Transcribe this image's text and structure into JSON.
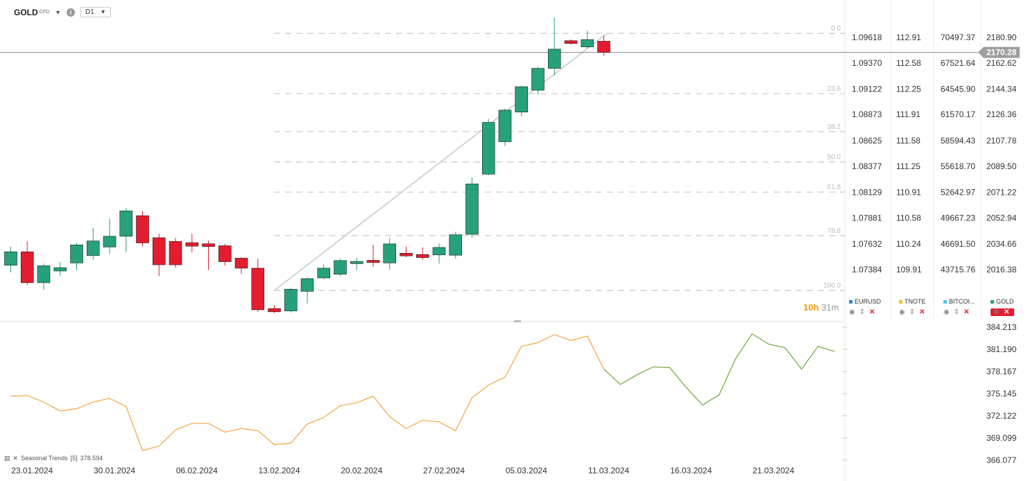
{
  "header": {
    "symbol": "GOLD",
    "badge": "CFD",
    "timeframe": "D1"
  },
  "countdown": {
    "hours": "10h",
    "minutes": "31m"
  },
  "colors": {
    "up": "#26a17b",
    "down": "#e31d2f",
    "grid": "#c8c8c8",
    "fib": "#c8c8c8",
    "trend": "#cfd4d8",
    "ind_orange": "#f4a340",
    "ind_green": "#6aa834",
    "price_tag": "#9e9e9e"
  },
  "legend": [
    {
      "name": "EURUSD",
      "color": "#1e88e5"
    },
    {
      "name": "TNOTE",
      "color": "#f0c419"
    },
    {
      "name": "BITCOI...",
      "color": "#4fc3f7"
    },
    {
      "name": "GOLD",
      "color": "#26a17b"
    }
  ],
  "chart_data": {
    "type": "candlestick",
    "symbol": "GOLD",
    "timeframe": "D1",
    "x_tick_labels": [
      "23.01.2024",
      "30.01.2024",
      "06.02.2024",
      "13.02.2024",
      "20.02.2024",
      "27.02.2024",
      "05.03.2024",
      "11.03.2024",
      "16.03.2024",
      "21.03.2024"
    ],
    "last_price": "2170.28",
    "candles": [
      {
        "o": 2019.5,
        "h": 2032.5,
        "l": 2014.4,
        "c": 2029.0
      },
      {
        "o": 2029.0,
        "h": 2036.4,
        "l": 2005.4,
        "c": 2007.1
      },
      {
        "o": 2007.1,
        "h": 2020.6,
        "l": 2002.2,
        "c": 2019.1
      },
      {
        "o": 2015.4,
        "h": 2021.9,
        "l": 2011.9,
        "c": 2017.8
      },
      {
        "o": 2021.1,
        "h": 2035.3,
        "l": 2016.0,
        "c": 2033.9
      },
      {
        "o": 2026.4,
        "h": 2046.1,
        "l": 2023.5,
        "c": 2036.7
      },
      {
        "o": 2032.4,
        "h": 2052.3,
        "l": 2027.8,
        "c": 2040.0
      },
      {
        "o": 2040.0,
        "h": 2060.0,
        "l": 2028.5,
        "c": 2058.0
      },
      {
        "o": 2054.6,
        "h": 2057.8,
        "l": 2032.8,
        "c": 2035.3
      },
      {
        "o": 2039.0,
        "h": 2041.8,
        "l": 2011.7,
        "c": 2019.8
      },
      {
        "o": 2036.4,
        "h": 2039.0,
        "l": 2017.8,
        "c": 2019.8
      },
      {
        "o": 2035.5,
        "h": 2041.8,
        "l": 2028.5,
        "c": 2033.0
      },
      {
        "o": 2034.7,
        "h": 2036.9,
        "l": 2016.1,
        "c": 2032.7
      },
      {
        "o": 2033.3,
        "h": 2034.6,
        "l": 2019.1,
        "c": 2022.0
      },
      {
        "o": 2024.5,
        "h": 2025.1,
        "l": 2013.5,
        "c": 2017.4
      },
      {
        "o": 2017.4,
        "h": 2024.2,
        "l": 1986.5,
        "c": 1987.9
      },
      {
        "o": 1988.8,
        "h": 1991.2,
        "l": 1985.6,
        "c": 1986.5
      },
      {
        "o": 1987.1,
        "h": 2003.4,
        "l": 1986.0,
        "c": 2002.5
      },
      {
        "o": 2001.0,
        "h": 2010.7,
        "l": 1992.3,
        "c": 2010.0
      },
      {
        "o": 2010.5,
        "h": 2020.0,
        "l": 2009.5,
        "c": 2017.4
      },
      {
        "o": 2013.1,
        "h": 2024.2,
        "l": 2011.7,
        "c": 2022.8
      },
      {
        "o": 2020.6,
        "h": 2024.9,
        "l": 2016.0,
        "c": 2022.2
      },
      {
        "o": 2023.0,
        "h": 2034.0,
        "l": 2018.4,
        "c": 2021.4
      },
      {
        "o": 2021.1,
        "h": 2038.8,
        "l": 2016.4,
        "c": 2034.6
      },
      {
        "o": 2028.0,
        "h": 2032.7,
        "l": 2025.2,
        "c": 2026.1
      },
      {
        "o": 2027.1,
        "h": 2032.2,
        "l": 2023.3,
        "c": 2024.9
      },
      {
        "o": 2026.8,
        "h": 2035.0,
        "l": 2020.6,
        "c": 2032.1
      },
      {
        "o": 2026.6,
        "h": 2043.2,
        "l": 2024.1,
        "c": 2041.1
      },
      {
        "o": 2041.4,
        "h": 2081.5,
        "l": 2039.1,
        "c": 2077.1
      },
      {
        "o": 2084.0,
        "h": 2123.2,
        "l": 2083.2,
        "c": 2120.7
      },
      {
        "o": 2107.0,
        "h": 2130.6,
        "l": 2103.9,
        "c": 2129.4
      },
      {
        "o": 2128.0,
        "h": 2146.7,
        "l": 2125.0,
        "c": 2146.0
      },
      {
        "o": 2143.5,
        "h": 2160.4,
        "l": 2140.2,
        "c": 2159.0
      },
      {
        "o": 2159.0,
        "h": 2194.8,
        "l": 2154.2,
        "c": 2172.6
      },
      {
        "o": 2178.6,
        "h": 2179.5,
        "l": 2175.8,
        "c": 2176.6
      },
      {
        "o": 2174.2,
        "h": 2185.7,
        "l": 2173.1,
        "c": 2179.4
      },
      {
        "o": 2178.2,
        "h": 2182.3,
        "l": 2168.1,
        "c": 2170.3
      }
    ],
    "fibonacci": [
      {
        "level": "0.0",
        "price": 2183.8
      },
      {
        "level": "23.6",
        "price": 2141.1
      },
      {
        "level": "38.2",
        "price": 2114.2
      },
      {
        "level": "50.0",
        "price": 2092.7
      },
      {
        "level": "61.8",
        "price": 2071.3
      },
      {
        "level": "78.6",
        "price": 2040.5
      },
      {
        "level": "100.0",
        "price": 2001.6
      }
    ],
    "trendline": [
      {
        "i": 16,
        "price": 2001.6
      },
      {
        "i": 36.2,
        "price": 2183.8
      }
    ],
    "right_axis": {
      "labels": [
        "2180.90",
        "2162.62",
        "2144.34",
        "2126.36",
        "2107.78",
        "2089.50",
        "2071.22",
        "2052.94",
        "2034.66",
        "2016.38"
      ],
      "prices": [
        2180.9,
        2162.62,
        2144.34,
        2126.36,
        2107.78,
        2089.5,
        2071.22,
        2052.94,
        2034.66,
        2016.38
      ]
    },
    "compare_columns": {
      "EURUSD": [
        "1.09618",
        "1.09370",
        "1.09122",
        "1.08873",
        "1.08625",
        "1.08377",
        "1.08129",
        "1.07881",
        "1.07632",
        "1.07384"
      ],
      "TNOTE": [
        "112.91",
        "112.58",
        "112.25",
        "111.91",
        "111.58",
        "111.25",
        "110.91",
        "110.58",
        "110.24",
        "109.91"
      ],
      "BITCOIN": [
        "70497.37",
        "67521.64",
        "64545.90",
        "61570.17",
        "58594.43",
        "55618.70",
        "52642.97",
        "49667.23",
        "46691.50",
        "43715.76"
      ]
    },
    "indicator": {
      "name": "Seasonal Trends",
      "period": "[5]",
      "value": "378.594",
      "axis_labels": [
        "384.213",
        "381.190",
        "378.167",
        "375.145",
        "372.122",
        "369.099",
        "366.077"
      ],
      "axis_values": [
        384.213,
        381.19,
        378.167,
        375.145,
        372.122,
        369.099,
        366.077
      ],
      "values": [
        374.8,
        374.9,
        374.0,
        372.8,
        373.1,
        374.0,
        374.5,
        373.4,
        367.4,
        368.0,
        370.2,
        371.1,
        371.1,
        369.9,
        370.4,
        370.1,
        368.2,
        368.4,
        371.0,
        371.9,
        373.5,
        373.9,
        374.8,
        372.0,
        370.4,
        371.5,
        371.3,
        370.1,
        374.6,
        376.3,
        377.4,
        381.6,
        382.1,
        383.2,
        382.4,
        383.0,
        378.5,
        376.4,
        377.7,
        378.8,
        378.7,
        376.0,
        373.6,
        375.0,
        379.9,
        383.3,
        381.9,
        381.4,
        378.5,
        381.6,
        380.9
      ],
      "orange_until": 36
    }
  }
}
